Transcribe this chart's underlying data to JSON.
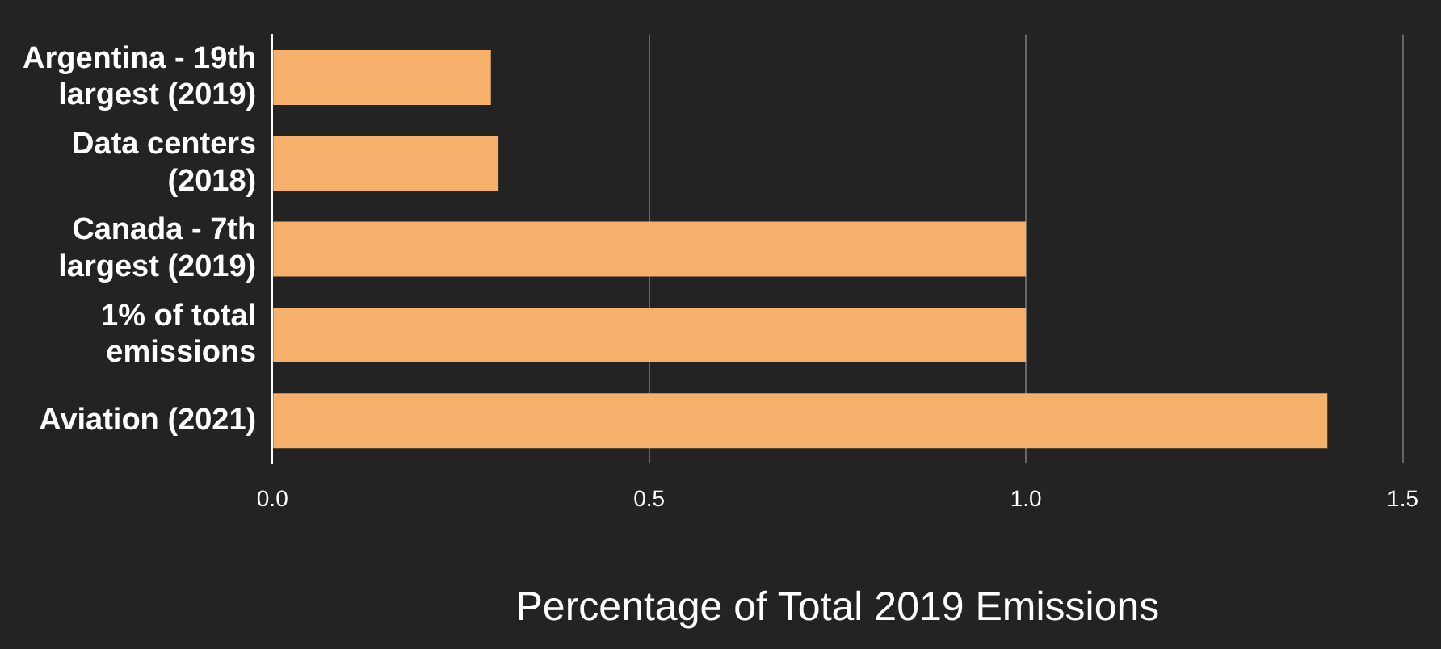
{
  "chart_data": {
    "type": "bar",
    "orientation": "horizontal",
    "xlabel": "Percentage of Total 2019 Emissions",
    "categories": [
      "Argentina - 19th largest (2019)",
      "Data centers (2018)",
      "Canada - 7th largest (2019)",
      "1% of total emissions",
      "Aviation (2021)"
    ],
    "values": [
      0.29,
      0.3,
      1.0,
      1.0,
      1.4
    ],
    "color": "#f5b06b",
    "xlim": [
      0,
      1.5
    ],
    "xticks": [
      {
        "value": 0,
        "label": "0.0"
      },
      {
        "value": 0.5,
        "label": "0.5"
      },
      {
        "value": 1,
        "label": "1.0"
      },
      {
        "value": 1.5,
        "label": "1.5"
      }
    ],
    "grid": "x",
    "legend": false
  }
}
